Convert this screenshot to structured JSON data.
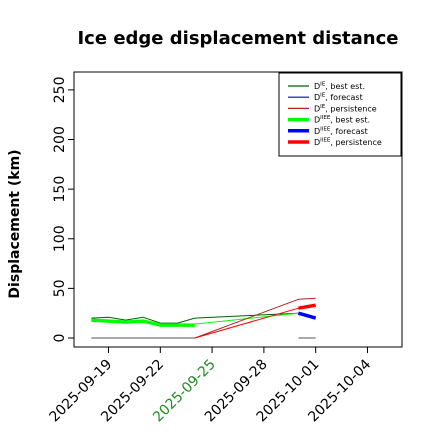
{
  "chart_data": {
    "type": "line",
    "title": "Ice edge displacement distance",
    "xlabel": "",
    "ylabel": "Displacement (km)",
    "ylim": [
      0,
      260
    ],
    "xlim": [
      "2025-09-17",
      "2025-10-06"
    ],
    "x_ticks": [
      {
        "date": "2025-09-19",
        "label": "2025-09-19",
        "color": "#000000"
      },
      {
        "date": "2025-09-22",
        "label": "2025-09-22",
        "color": "#000000"
      },
      {
        "date": "2025-09-25",
        "label": "2025-09-25",
        "color": "#228b22"
      },
      {
        "date": "2025-09-28",
        "label": "2025-09-28",
        "color": "#000000"
      },
      {
        "date": "2025-10-01",
        "label": "2025-10-01",
        "color": "#000000"
      },
      {
        "date": "2025-10-04",
        "label": "2025-10-04",
        "color": "#000000"
      }
    ],
    "y_ticks": [
      0,
      50,
      100,
      150,
      200,
      250
    ],
    "grid": false,
    "legend_position": "top-right",
    "legend": [
      {
        "name": "D^IE, best est.",
        "base": "D",
        "sup": "IE",
        "suffix": ", best est.",
        "color": "#006400",
        "width": "thin"
      },
      {
        "name": "D^IE, forecast",
        "base": "D",
        "sup": "IE",
        "suffix": ", forecast",
        "color": "#0000cd",
        "width": "thin"
      },
      {
        "name": "D^IE, persistence",
        "base": "D",
        "sup": "IE",
        "suffix": ", persistence",
        "color": "#b22222",
        "width": "thin"
      },
      {
        "name": "D^IIEE, best est.",
        "base": "D",
        "sup": "IIEE",
        "suffix": ", best est.",
        "color": "#00ff00",
        "width": "thick"
      },
      {
        "name": "D^IIEE, forecast",
        "base": "D",
        "sup": "IIEE",
        "suffix": ", forecast",
        "color": "#0000ff",
        "width": "thick"
      },
      {
        "name": "D^IIEE, persistence",
        "base": "D",
        "sup": "IIEE",
        "suffix": ", persistence",
        "color": "#ff0000",
        "width": "thick"
      }
    ],
    "series": [
      {
        "color": "#006400",
        "width": "thin",
        "points": [
          [
            "2025-09-18",
            20
          ],
          [
            "2025-09-19",
            21
          ],
          [
            "2025-09-20",
            18
          ],
          [
            "2025-09-21",
            21
          ],
          [
            "2025-09-22",
            15
          ],
          [
            "2025-09-23",
            15
          ],
          [
            "2025-09-24",
            20
          ],
          [
            "2025-09-30",
            25
          ],
          [
            "2025-10-01",
            21
          ]
        ]
      },
      {
        "color": "#00ff00",
        "width": "thick",
        "points": [
          [
            "2025-09-18",
            18
          ],
          [
            "2025-09-19",
            17
          ],
          [
            "2025-09-20",
            16
          ],
          [
            "2025-09-21",
            17
          ],
          [
            "2025-09-22",
            13
          ],
          [
            "2025-09-23",
            13
          ],
          [
            "2025-09-24",
            13
          ]
        ]
      },
      {
        "color": "#00ff00",
        "width": "thin",
        "points": [
          [
            "2025-09-24",
            14
          ],
          [
            "2025-09-30",
            25
          ]
        ]
      },
      {
        "color": "#0000cd",
        "width": "thin",
        "points": [
          [
            "2025-09-30",
            25
          ],
          [
            "2025-10-01",
            21
          ]
        ]
      },
      {
        "color": "#0000ff",
        "width": "thick",
        "points": [
          [
            "2025-09-30",
            25
          ],
          [
            "2025-10-01",
            20
          ]
        ]
      },
      {
        "color": "#b22222",
        "width": "thin",
        "points": [
          [
            "2025-09-24",
            0
          ],
          [
            "2025-09-30",
            39
          ],
          [
            "2025-10-01",
            40
          ]
        ]
      },
      {
        "color": "#ff0000",
        "width": "thick",
        "points": [
          [
            "2025-09-30",
            30
          ],
          [
            "2025-10-01",
            33
          ]
        ]
      },
      {
        "color": "#ff0000",
        "width": "thin",
        "points": [
          [
            "2025-09-24",
            0
          ],
          [
            "2025-09-30",
            30
          ]
        ]
      },
      {
        "color": "#555555",
        "width": "thin",
        "points": [
          [
            "2025-09-18",
            0
          ],
          [
            "2025-09-24",
            0
          ]
        ]
      },
      {
        "color": "#555555",
        "width": "thin",
        "points": [
          [
            "2025-09-30",
            0
          ],
          [
            "2025-10-01",
            0
          ]
        ]
      }
    ]
  }
}
